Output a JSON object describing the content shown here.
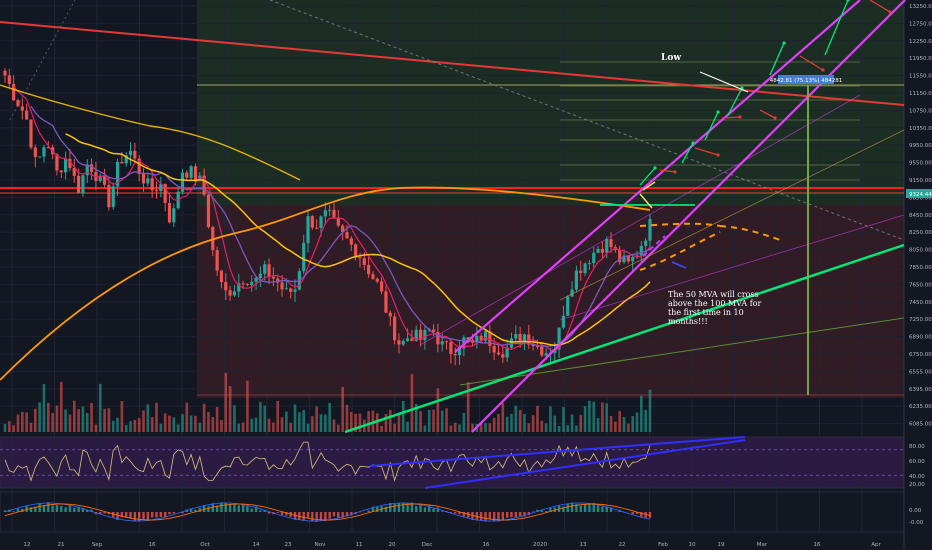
{
  "chart_data": [
    {
      "type": "candlestick",
      "title": "",
      "price_axis_labels": [
        "13250.00",
        "12750.00",
        "12250.00",
        "11950.00",
        "11550.00",
        "11150.00",
        "10750.00",
        "10350.00",
        "9950.00",
        "9550.00",
        "9150.00",
        "8850.00",
        "8450.00",
        "8250.00",
        "8050.00",
        "7850.00",
        "7650.00",
        "7450.00",
        "7250.00",
        "6890.00",
        "6750.00",
        "6555.00",
        "6395.00",
        "6235.00",
        "6085.00"
      ],
      "time_axis_labels": [
        "12",
        "21",
        "Sep",
        "16",
        "Oct",
        "14",
        "23",
        "Nov",
        "11",
        "20",
        "Dec",
        "16",
        "2020",
        "13",
        "22",
        "Feb",
        "10",
        "19",
        "Mar",
        "16",
        "Apr"
      ],
      "last_price_label": "9324.44",
      "measure_label": "4842.81 (75.13%) 484281",
      "annotations": [
        "Low",
        "The 50 MVA will cross above the 100 MVA for the first time in 10 months!!!"
      ],
      "price_path": [
        11900,
        11500,
        11200,
        10300,
        10800,
        10200,
        10500,
        9900,
        10400,
        10100,
        9700,
        10400,
        10600,
        10200,
        9900,
        10000,
        9300,
        10250,
        10200,
        10000,
        8800,
        8100,
        8200,
        8400,
        8300,
        8500,
        8350,
        8100,
        8200,
        9400,
        9300,
        9500,
        9200,
        9000,
        8800,
        8500,
        8200,
        7600,
        7200,
        7400,
        7300,
        7500,
        7200,
        7100,
        7300,
        7200,
        7400,
        7200,
        7100,
        7300,
        7400,
        7200,
        7100,
        7200,
        8100,
        8500,
        8700,
        8900,
        9000,
        8700,
        8600,
        8900,
        9300
      ]
    },
    {
      "type": "line",
      "panel": "RSI",
      "axis_labels": [
        "80.00",
        "60.00",
        "40.00",
        "20.00"
      ]
    },
    {
      "type": "histogram",
      "panel": "MACD",
      "axis_labels": [
        "0.00",
        "-0.00"
      ]
    }
  ],
  "colors": {
    "up": "#26a69a",
    "down": "#ef5350",
    "trendline_red": "#e53935",
    "channel_magenta": "#e040fb",
    "support_green": "#00e676",
    "ma_orange": "#ff9800",
    "ma_yellow": "#ffc107",
    "ma_pink": "#e91e63",
    "ma_purple": "#7e57c2",
    "rsi_band": "#3f1f5f",
    "rsi_trend_blue": "#2f2fff"
  }
}
